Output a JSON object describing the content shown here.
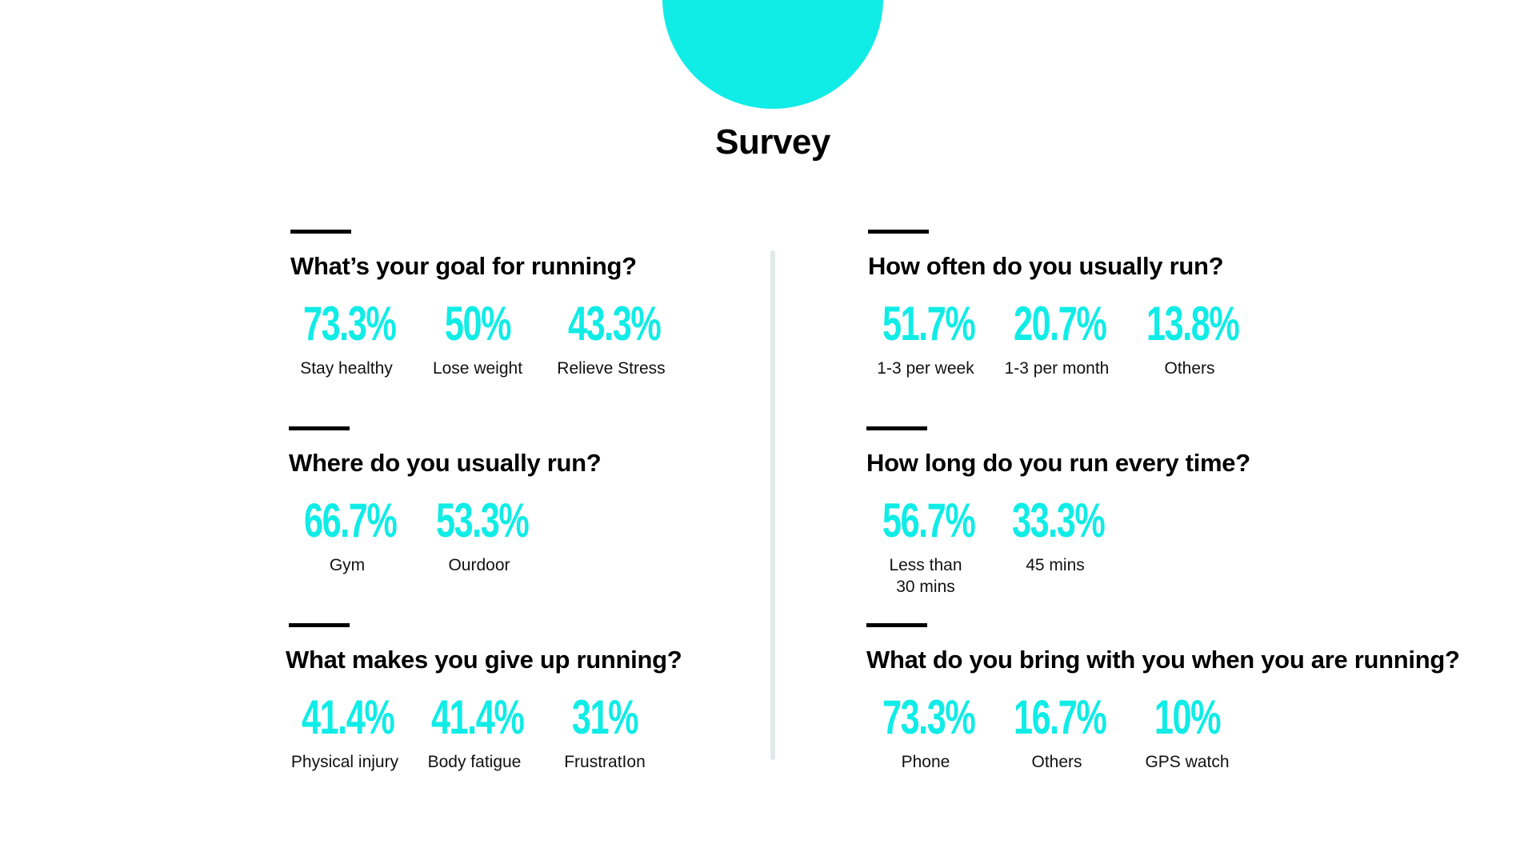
{
  "title": "Survey",
  "colors": {
    "accent": "#10ECE6",
    "divider": "#E3E8EA",
    "text": "#000000"
  },
  "questions": [
    {
      "title": "What’s your goal for running?",
      "stats": [
        {
          "value": "73.3%",
          "label": "Stay healthy"
        },
        {
          "value": "50%",
          "label": "Lose weight"
        },
        {
          "value": "43.3%",
          "label": "Relieve Stress"
        }
      ]
    },
    {
      "title": "Where do you usually run?",
      "stats": [
        {
          "value": "66.7%",
          "label": "Gym"
        },
        {
          "value": "53.3%",
          "label": "Ourdoor"
        }
      ]
    },
    {
      "title": "What makes you give up running?",
      "stats": [
        {
          "value": "41.4%",
          "label": "Physical injury"
        },
        {
          "value": "41.4%",
          "label": "Body fatigue"
        },
        {
          "value": "31%",
          "label": "FrustratIon"
        }
      ]
    },
    {
      "title": "How often do you usually run?",
      "stats": [
        {
          "value": "51.7%",
          "label": "1-3 per week"
        },
        {
          "value": "20.7%",
          "label": "1-3 per month"
        },
        {
          "value": "13.8%",
          "label": "Others"
        }
      ]
    },
    {
      "title": "How long do you run every time?",
      "stats": [
        {
          "value": "56.7%",
          "label": "Less than\n30 mins"
        },
        {
          "value": "33.3%",
          "label": "45 mins"
        }
      ]
    },
    {
      "title": "What do you bring with you when you are running?",
      "stats": [
        {
          "value": "73.3%",
          "label": "Phone"
        },
        {
          "value": "16.7%",
          "label": "Others"
        },
        {
          "value": "10%",
          "label": "GPS watch"
        }
      ]
    }
  ]
}
